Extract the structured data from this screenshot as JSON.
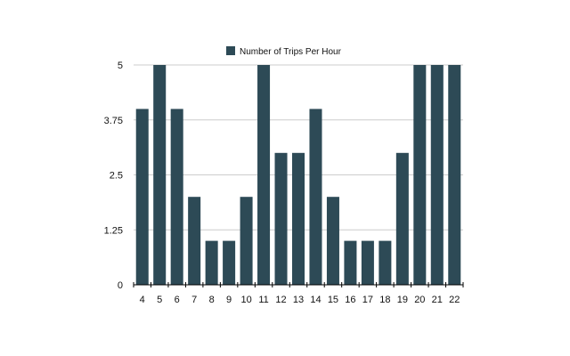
{
  "chart_data": {
    "type": "bar",
    "categories": [
      "4",
      "5",
      "6",
      "7",
      "8",
      "9",
      "10",
      "11",
      "12",
      "13",
      "14",
      "15",
      "16",
      "17",
      "18",
      "19",
      "20",
      "21",
      "22"
    ],
    "series": [
      {
        "name": "Number of Trips Per Hour",
        "values": [
          4,
          5,
          4,
          2,
          1,
          1,
          2,
          5,
          3,
          3,
          4,
          2,
          1,
          1,
          1,
          3,
          5,
          5,
          5
        ]
      }
    ],
    "y_ticks": [
      "0",
      "1.25",
      "2.5",
      "3.75",
      "5"
    ],
    "ylim": [
      0,
      5
    ],
    "grid": true,
    "legend_position": "top-center",
    "colors": {
      "bar": "#2d4a56",
      "grid": "#cccccc",
      "axis": "#000000"
    }
  }
}
